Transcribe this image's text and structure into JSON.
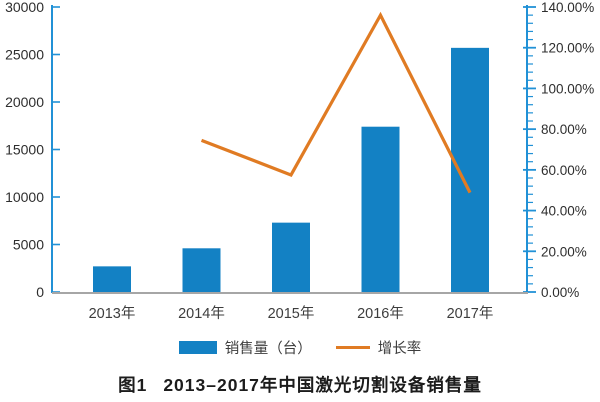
{
  "figure": {
    "caption_prefix": "图1",
    "caption_title": "2013–2017年中国激光切割设备销售量"
  },
  "legend": {
    "sales_label": "销售量（台）",
    "growth_label": "增长率"
  },
  "colors": {
    "bar": "#1381c4",
    "line": "#e07b23",
    "axis": "#2191d6",
    "tick_text": "#2e2e2e",
    "x_text": "#3d3d3d",
    "baseline": "#a6a6a6",
    "caption": "#1c1c1c"
  },
  "chart_data": {
    "type": "bar",
    "title": "图1 2013–2017年中国激光切割设备销售量",
    "categories": [
      "2013年",
      "2014年",
      "2015年",
      "2016年",
      "2017年"
    ],
    "series": [
      {
        "name": "销售量（台）",
        "type": "bar",
        "axis": "left",
        "values": [
          2700,
          4600,
          7300,
          17400,
          25700
        ]
      },
      {
        "name": "增长率",
        "type": "line",
        "axis": "right",
        "unit": "%",
        "values": [
          null,
          74.5,
          57.5,
          136.0,
          48.8
        ]
      }
    ],
    "left_axis": {
      "min": 0,
      "max": 30000,
      "step": 5000,
      "tick_labels": [
        "0",
        "5000",
        "10000",
        "15000",
        "20000",
        "25000",
        "30000"
      ]
    },
    "right_axis": {
      "min": 0,
      "max": 140,
      "step": 20,
      "minor_step": 4,
      "tick_labels": [
        "0.00%",
        "20.00%",
        "40.00%",
        "60.00%",
        "80.00%",
        "100.00%",
        "120.00%",
        "140.00%"
      ]
    },
    "grid": false,
    "legend_position": "bottom"
  }
}
